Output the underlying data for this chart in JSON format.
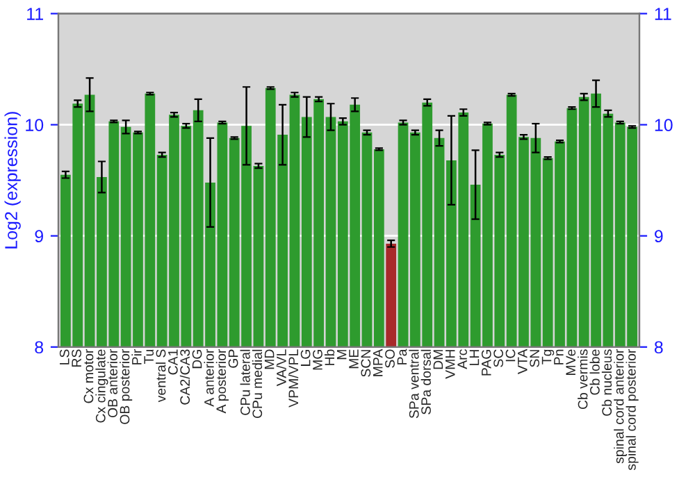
{
  "chart_data": {
    "type": "bar",
    "ylabel": "Log2 (expression)",
    "categories": [
      "LS",
      "RS",
      "Cx motor",
      "Cx cingulate",
      "OB anterior",
      "OB posterior",
      "Pir",
      "Tu",
      "ventral S",
      "CA1",
      "CA2/CA3",
      "DG",
      "A anterior",
      "A posterior",
      "GP",
      "CPu lateral",
      "CPu medial",
      "MD",
      "VA/VL",
      "VPM/VPL",
      "LG",
      "MG",
      "Hb",
      "M",
      "ME",
      "SCN",
      "MPA",
      "SO",
      "Pa",
      "SPa ventral",
      "SPa dorsal",
      "DM",
      "VMH",
      "Arc",
      "LH",
      "PAG",
      "SC",
      "IC",
      "VTA",
      "SN",
      "Tg",
      "Pn",
      "MVe",
      "Cb vermis",
      "Cb lobe",
      "Cb nucleus",
      "spinal cord anterior",
      "spinal cord posterior"
    ],
    "values": [
      9.55,
      10.19,
      10.27,
      9.53,
      10.03,
      9.98,
      9.93,
      10.28,
      9.73,
      10.09,
      9.99,
      10.13,
      9.48,
      10.02,
      9.88,
      9.99,
      9.63,
      10.33,
      9.91,
      10.27,
      10.07,
      10.23,
      10.07,
      10.03,
      10.18,
      9.93,
      9.78,
      8.93,
      10.02,
      9.93,
      10.2,
      9.88,
      9.68,
      10.11,
      9.46,
      10.01,
      9.73,
      10.27,
      9.89,
      9.88,
      9.7,
      9.85,
      10.15,
      10.25,
      10.28,
      10.1,
      10.02,
      9.98
    ],
    "errors": [
      0.03,
      0.03,
      0.15,
      0.14,
      0.01,
      0.06,
      0.01,
      0.01,
      0.02,
      0.02,
      0.02,
      0.1,
      0.4,
      0.01,
      0.01,
      0.35,
      0.02,
      0.01,
      0.27,
      0.02,
      0.18,
      0.02,
      0.12,
      0.03,
      0.06,
      0.02,
      0.01,
      0.03,
      0.02,
      0.02,
      0.03,
      0.07,
      0.4,
      0.03,
      0.31,
      0.01,
      0.02,
      0.01,
      0.02,
      0.13,
      0.01,
      0.01,
      0.01,
      0.03,
      0.12,
      0.03,
      0.01,
      0.01
    ],
    "colors": [
      "#2e9b2e",
      "#2e9b2e",
      "#2e9b2e",
      "#2e9b2e",
      "#2e9b2e",
      "#2e9b2e",
      "#2e9b2e",
      "#2e9b2e",
      "#2e9b2e",
      "#2e9b2e",
      "#2e9b2e",
      "#2e9b2e",
      "#2e9b2e",
      "#2e9b2e",
      "#2e9b2e",
      "#2e9b2e",
      "#2e9b2e",
      "#2e9b2e",
      "#2e9b2e",
      "#2e9b2e",
      "#2e9b2e",
      "#2e9b2e",
      "#2e9b2e",
      "#2e9b2e",
      "#2e9b2e",
      "#2e9b2e",
      "#2e9b2e",
      "#a82a2a",
      "#2e9b2e",
      "#2e9b2e",
      "#2e9b2e",
      "#2e9b2e",
      "#2e9b2e",
      "#2e9b2e",
      "#2e9b2e",
      "#2e9b2e",
      "#2e9b2e",
      "#2e9b2e",
      "#2e9b2e",
      "#2e9b2e",
      "#2e9b2e",
      "#2e9b2e",
      "#2e9b2e",
      "#2e9b2e",
      "#2e9b2e",
      "#2e9b2e",
      "#2e9b2e",
      "#2e9b2e"
    ],
    "ylim": [
      8,
      11
    ],
    "yticks": [
      8,
      9,
      10,
      11
    ],
    "y2lim": [
      8,
      11
    ],
    "y2ticks": [
      8,
      9,
      10,
      11
    ],
    "grid": "y"
  }
}
